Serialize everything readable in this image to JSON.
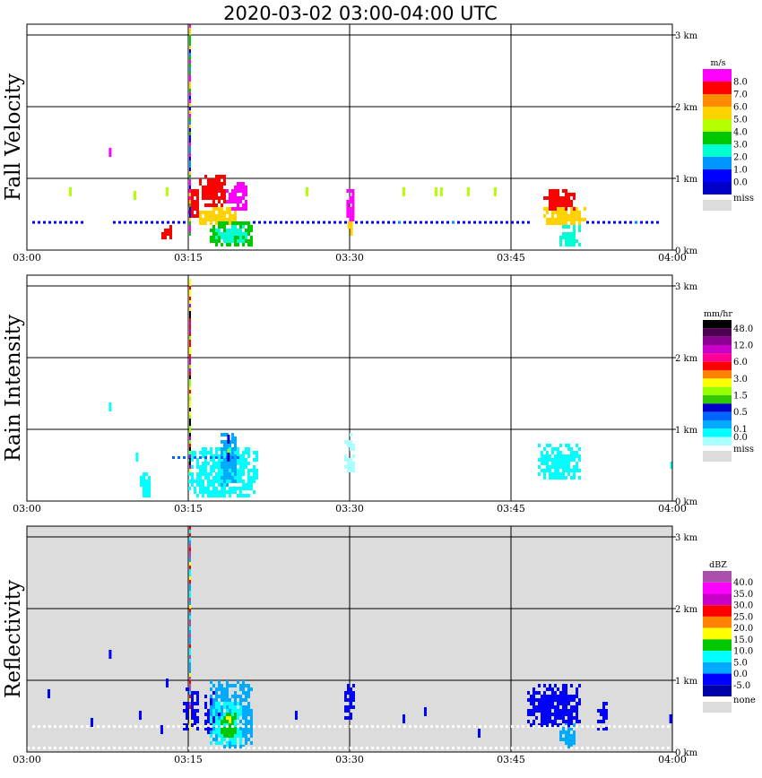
{
  "chart_data": {
    "type": "heatmap",
    "title": "2020-03-02   03:00-04:00 UTC",
    "x_tick_labels": [
      "03:00",
      "03:15",
      "03:30",
      "03:45",
      "04:00"
    ],
    "y_tick_labels": [
      "0 km",
      "1 km",
      "2 km",
      "3 km"
    ],
    "x_range": [
      "03:00",
      "04:00"
    ],
    "y_range_km": [
      0,
      3.15
    ],
    "grid": true,
    "legend_position": "right",
    "panels": [
      {
        "id": "fall",
        "ylabel": "Fall Velocity",
        "unit": "m/s",
        "background": "#ffffff",
        "levels": [
          "8.0",
          "7.0",
          "6.0",
          "5.0",
          "4.0",
          "3.0",
          "2.0",
          "1.0",
          "0.0"
        ],
        "colors": [
          "#ff00ff",
          "#ff0000",
          "#ff8c00",
          "#ffd200",
          "#b4ff00",
          "#00c800",
          "#00ffd2",
          "#0096ff",
          "#0000ff",
          "#0000c8"
        ],
        "miss_label": "miss",
        "miss_color": "#dcdcdc",
        "blobs": [
          {
            "t": [
              12.5,
              13.5
            ],
            "h": [
              0.15,
              0.35
            ],
            "c": 1
          },
          {
            "t": [
              15.0,
              16.0
            ],
            "h": [
              0.45,
              0.85
            ],
            "c": 1
          },
          {
            "t": [
              16.0,
              18.5
            ],
            "h": [
              0.6,
              1.05
            ],
            "c": 1
          },
          {
            "t": [
              18.5,
              20.5
            ],
            "h": [
              0.55,
              0.95
            ],
            "c": 0
          },
          {
            "t": [
              16.0,
              19.5
            ],
            "h": [
              0.35,
              0.6
            ],
            "c": 3
          },
          {
            "t": [
              17.0,
              21.0
            ],
            "h": [
              0.05,
              0.4
            ],
            "c": 5
          },
          {
            "t": [
              17.5,
              20.5
            ],
            "h": [
              0.1,
              0.35
            ],
            "c": 6
          },
          {
            "t": [
              29.7,
              30.3
            ],
            "h": [
              0.3,
              0.95
            ],
            "c": 0
          },
          {
            "t": [
              29.8,
              30.2
            ],
            "h": [
              0.2,
              0.45
            ],
            "c": 3
          },
          {
            "t": [
              48.0,
              51.0
            ],
            "h": [
              0.55,
              0.85
            ],
            "c": 1
          },
          {
            "t": [
              48.0,
              52.0
            ],
            "h": [
              0.35,
              0.6
            ],
            "c": 3
          },
          {
            "t": [
              49.5,
              51.5
            ],
            "h": [
              0.05,
              0.35
            ],
            "c": 6
          },
          {
            "t": [
              59.8,
              60.0
            ],
            "h": [
              0.4,
              0.55
            ],
            "c": 1
          }
        ],
        "row_points": [
          {
            "t": [
              0.5,
              5.5
            ],
            "h": 0.38,
            "c": 8
          },
          {
            "t": [
              8.0,
              15.0
            ],
            "h": 0.38,
            "c": 8
          },
          {
            "t": [
              21.0,
              30.0
            ],
            "h": 0.38,
            "c": 8
          },
          {
            "t": [
              30.5,
              47.0
            ],
            "h": 0.38,
            "c": 8
          },
          {
            "t": [
              52.0,
              59.0
            ],
            "h": 0.38,
            "c": 8
          },
          {
            "t": [
              34.5,
              35.0
            ],
            "h": 0.38,
            "c": 7
          },
          {
            "t": [
              39.5,
              40.0
            ],
            "h": 0.38,
            "c": 7
          },
          {
            "t": [
              56.5,
              57.0
            ],
            "h": 0.38,
            "c": 7
          }
        ],
        "specks": [
          {
            "t": 7.7,
            "h": 1.35,
            "c": 0
          },
          {
            "t": 4.0,
            "h": 0.8,
            "c": 4
          },
          {
            "t": 10.0,
            "h": 0.75,
            "c": 4
          },
          {
            "t": 13.0,
            "h": 0.8,
            "c": 4
          },
          {
            "t": 26.0,
            "h": 0.8,
            "c": 4
          },
          {
            "t": 35.0,
            "h": 0.8,
            "c": 4
          },
          {
            "t": 38.0,
            "h": 0.8,
            "c": 4
          },
          {
            "t": 38.5,
            "h": 0.8,
            "c": 4
          },
          {
            "t": 41.0,
            "h": 0.8,
            "c": 4
          },
          {
            "t": 43.5,
            "h": 0.8,
            "c": 4
          }
        ],
        "spike": {
          "t": 15.0,
          "h": [
            0.2,
            3.15
          ]
        }
      },
      {
        "id": "rain",
        "ylabel": "Rain Intensity",
        "unit": "mm/hr",
        "background": "#ffffff",
        "levels": [
          "48.0",
          "",
          "12.0",
          "",
          "6.0",
          "",
          "3.0",
          "",
          "1.5",
          "",
          "0.5",
          "",
          "0.1",
          "0.0"
        ],
        "colors": [
          "#000000",
          "#500050",
          "#8c0096",
          "#c800c8",
          "#ff0096",
          "#ff0000",
          "#ff8200",
          "#ffff00",
          "#96ff00",
          "#32c800",
          "#0000c8",
          "#0064ff",
          "#00aaff",
          "#00ffff",
          "#aaffff"
        ],
        "miss_label": "miss",
        "miss_color": "#dcdcdc",
        "blobs": [
          {
            "t": [
              10.5,
              11.5
            ],
            "h": [
              0.05,
              0.45
            ],
            "c": 13
          },
          {
            "t": [
              15.0,
              21.5
            ],
            "h": [
              0.05,
              0.75
            ],
            "c": 13
          },
          {
            "t": [
              18.0,
              19.5
            ],
            "h": [
              0.2,
              0.95
            ],
            "c": 12
          },
          {
            "t": [
              29.5,
              30.5
            ],
            "h": [
              0.4,
              0.95
            ],
            "c": 14
          },
          {
            "t": [
              47.5,
              51.5
            ],
            "h": [
              0.3,
              0.8
            ],
            "c": 13
          },
          {
            "t": [
              59.8,
              60.0
            ],
            "h": [
              0.45,
              0.55
            ],
            "c": 13
          }
        ],
        "row_points": [
          {
            "t": [
              13.5,
              20.0
            ],
            "h": 0.6,
            "c": 11
          }
        ],
        "specks": [
          {
            "t": 7.7,
            "h": 1.3,
            "c": 13
          },
          {
            "t": 10.2,
            "h": 0.6,
            "c": 13
          },
          {
            "t": 18.7,
            "h": 0.85,
            "c": 10
          },
          {
            "t": 18.7,
            "h": 0.65,
            "c": 8
          },
          {
            "t": 18.7,
            "h": 0.6,
            "c": 10
          }
        ],
        "spike": {
          "t": 15.0,
          "h": [
            0.4,
            3.1
          ]
        }
      },
      {
        "id": "refl",
        "ylabel": "Reflectivity",
        "unit": "dBZ",
        "background": "#dcdcdc",
        "levels": [
          "40.0",
          "35.0",
          "30.0",
          "25.0",
          "20.0",
          "15.0",
          "10.0",
          "5.0",
          "0.0",
          "-5.0"
        ],
        "colors": [
          "#aa50aa",
          "#ff00ff",
          "#c800c8",
          "#ff0000",
          "#ff8200",
          "#ffff00",
          "#00c800",
          "#00ffff",
          "#00aaff",
          "#0000ff",
          "#0000aa"
        ],
        "miss_label": "none",
        "miss_color": "#dcdcdc",
        "blobs": [
          {
            "t": [
              14.5,
              16.0
            ],
            "h": [
              0.3,
              0.9
            ],
            "c": 9
          },
          {
            "t": [
              16.5,
              18.0
            ],
            "h": [
              0.15,
              0.85
            ],
            "c": 9
          },
          {
            "t": [
              17.0,
              21.0
            ],
            "h": [
              0.05,
              1.0
            ],
            "c": 8
          },
          {
            "t": [
              17.0,
              20.0
            ],
            "h": [
              0.05,
              0.7
            ],
            "c": 7
          },
          {
            "t": [
              18.0,
              19.5
            ],
            "h": [
              0.2,
              0.55
            ],
            "c": 6
          },
          {
            "t": [
              18.5,
              19.0
            ],
            "h": [
              0.35,
              0.5
            ],
            "c": 5
          },
          {
            "t": [
              29.5,
              30.5
            ],
            "h": [
              0.45,
              0.95
            ],
            "c": 9
          },
          {
            "t": [
              46.5,
              51.5
            ],
            "h": [
              0.35,
              0.95
            ],
            "c": 9
          },
          {
            "t": [
              49.5,
              51.0
            ],
            "h": [
              0.05,
              0.45
            ],
            "c": 8
          },
          {
            "t": [
              53.0,
              54.0
            ],
            "h": [
              0.3,
              0.7
            ],
            "c": 9
          }
        ],
        "row_points": [
          {
            "t": [
              0.5,
              60.0
            ],
            "h": 0.35,
            "c": -1
          },
          {
            "t": [
              0.0,
              60.0
            ],
            "h": 0.05,
            "c": -1
          }
        ],
        "specks": [
          {
            "t": 7.7,
            "h": 1.35,
            "c": 9
          },
          {
            "t": 2.0,
            "h": 0.8,
            "c": 9
          },
          {
            "t": 6.0,
            "h": 0.4,
            "c": 9
          },
          {
            "t": 10.5,
            "h": 0.5,
            "c": 9
          },
          {
            "t": 12.5,
            "h": 0.3,
            "c": 9
          },
          {
            "t": 13.0,
            "h": 0.95,
            "c": 9
          },
          {
            "t": 25.0,
            "h": 0.5,
            "c": 9
          },
          {
            "t": 35.0,
            "h": 0.45,
            "c": 9
          },
          {
            "t": 37.0,
            "h": 0.55,
            "c": 9
          },
          {
            "t": 42.0,
            "h": 0.25,
            "c": 9
          },
          {
            "t": 59.8,
            "h": 0.45,
            "c": 9
          }
        ],
        "spike": {
          "t": 15.0,
          "h": [
            0.3,
            3.15
          ]
        }
      }
    ]
  }
}
